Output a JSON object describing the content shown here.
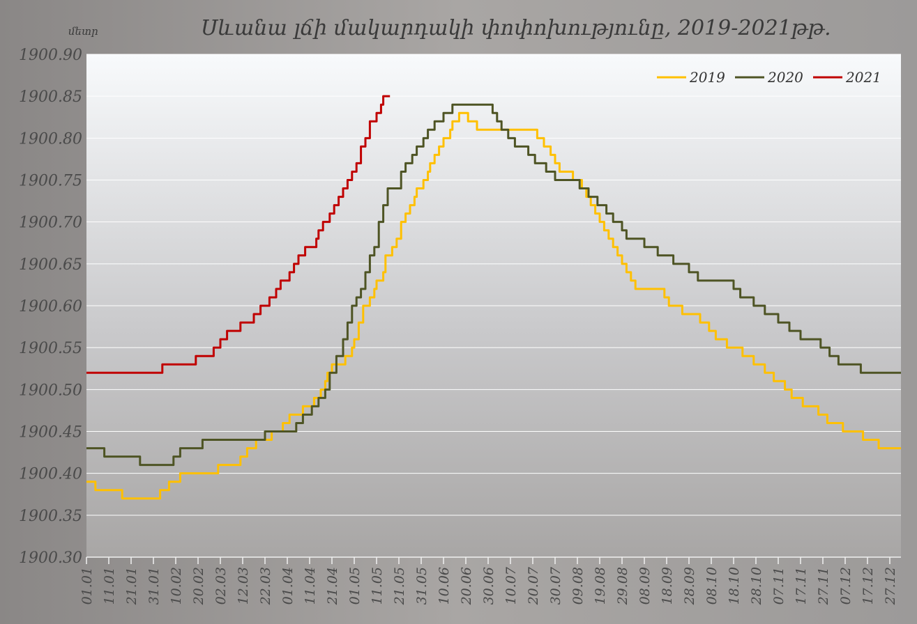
{
  "chart_data": {
    "type": "line",
    "title": "Սևանա լճի մակարդակի փոփոխությունը, 2019-2021թթ.",
    "ylabel": "մետր",
    "xlabel": "",
    "ylim": [
      1900.3,
      1900.9
    ],
    "yticks": [
      "1900.30",
      "1900.35",
      "1900.40",
      "1900.45",
      "1900.50",
      "1900.55",
      "1900.60",
      "1900.65",
      "1900.70",
      "1900.75",
      "1900.80",
      "1900.85",
      "1900.90"
    ],
    "xlim_days": [
      0,
      365
    ],
    "xticks": [
      "01.01",
      "11.01",
      "21.01",
      "31.01",
      "10.02",
      "20.02",
      "02.03",
      "12.03",
      "22.03",
      "01.04",
      "11.04",
      "21.04",
      "01.05",
      "11.05",
      "21.05",
      "31.05",
      "10.06",
      "20.06",
      "30.06",
      "10.07",
      "20.07",
      "30.07",
      "09.08",
      "19.08",
      "29.08",
      "08.09",
      "18.09",
      "28.09",
      "08.10",
      "18.10",
      "28.10",
      "07.11",
      "17.11",
      "27.11",
      "07.12",
      "17.12",
      "27.12"
    ],
    "grid": true,
    "legend_position": "top-right",
    "series": [
      {
        "name": "2019",
        "color": "#FFC000",
        "step_points": [
          [
            0,
            1900.39
          ],
          [
            4,
            1900.38
          ],
          [
            16,
            1900.37
          ],
          [
            33,
            1900.38
          ],
          [
            37,
            1900.39
          ],
          [
            42,
            1900.4
          ],
          [
            59,
            1900.41
          ],
          [
            69,
            1900.42
          ],
          [
            72,
            1900.43
          ],
          [
            76,
            1900.44
          ],
          [
            83,
            1900.45
          ],
          [
            88,
            1900.46
          ],
          [
            91,
            1900.47
          ],
          [
            97,
            1900.48
          ],
          [
            102,
            1900.49
          ],
          [
            105,
            1900.5
          ],
          [
            107,
            1900.51
          ],
          [
            108,
            1900.52
          ],
          [
            110,
            1900.53
          ],
          [
            116,
            1900.54
          ],
          [
            119,
            1900.55
          ],
          [
            120,
            1900.56
          ],
          [
            122,
            1900.58
          ],
          [
            124,
            1900.6
          ],
          [
            127,
            1900.61
          ],
          [
            129,
            1900.62
          ],
          [
            130,
            1900.63
          ],
          [
            133,
            1900.64
          ],
          [
            134,
            1900.66
          ],
          [
            137,
            1900.67
          ],
          [
            139,
            1900.68
          ],
          [
            141,
            1900.7
          ],
          [
            143,
            1900.71
          ],
          [
            145,
            1900.72
          ],
          [
            147,
            1900.73
          ],
          [
            148,
            1900.74
          ],
          [
            151,
            1900.75
          ],
          [
            153,
            1900.76
          ],
          [
            154,
            1900.77
          ],
          [
            156,
            1900.78
          ],
          [
            158,
            1900.79
          ],
          [
            160,
            1900.8
          ],
          [
            163,
            1900.81
          ],
          [
            164,
            1900.82
          ],
          [
            167,
            1900.83
          ],
          [
            171,
            1900.82
          ],
          [
            175,
            1900.81
          ],
          [
            202,
            1900.8
          ],
          [
            205,
            1900.79
          ],
          [
            208,
            1900.78
          ],
          [
            210,
            1900.77
          ],
          [
            212,
            1900.76
          ],
          [
            218,
            1900.75
          ],
          [
            222,
            1900.74
          ],
          [
            224,
            1900.73
          ],
          [
            226,
            1900.72
          ],
          [
            228,
            1900.71
          ],
          [
            230,
            1900.7
          ],
          [
            232,
            1900.69
          ],
          [
            234,
            1900.68
          ],
          [
            236,
            1900.67
          ],
          [
            238,
            1900.66
          ],
          [
            240,
            1900.65
          ],
          [
            242,
            1900.64
          ],
          [
            244,
            1900.63
          ],
          [
            246,
            1900.62
          ],
          [
            259,
            1900.61
          ],
          [
            261,
            1900.6
          ],
          [
            267,
            1900.59
          ],
          [
            275,
            1900.58
          ],
          [
            279,
            1900.57
          ],
          [
            282,
            1900.56
          ],
          [
            287,
            1900.55
          ],
          [
            294,
            1900.54
          ],
          [
            299,
            1900.53
          ],
          [
            304,
            1900.52
          ],
          [
            308,
            1900.51
          ],
          [
            313,
            1900.5
          ],
          [
            316,
            1900.49
          ],
          [
            321,
            1900.48
          ],
          [
            328,
            1900.47
          ],
          [
            332,
            1900.46
          ],
          [
            339,
            1900.45
          ],
          [
            348,
            1900.44
          ],
          [
            355,
            1900.43
          ],
          [
            365,
            1900.43
          ]
        ]
      },
      {
        "name": "2020",
        "color": "#4E5424",
        "step_points": [
          [
            0,
            1900.43
          ],
          [
            8,
            1900.42
          ],
          [
            24,
            1900.41
          ],
          [
            39,
            1900.42
          ],
          [
            42,
            1900.43
          ],
          [
            52,
            1900.44
          ],
          [
            80,
            1900.45
          ],
          [
            94,
            1900.46
          ],
          [
            97,
            1900.47
          ],
          [
            101,
            1900.48
          ],
          [
            104,
            1900.49
          ],
          [
            107,
            1900.5
          ],
          [
            109,
            1900.52
          ],
          [
            112,
            1900.54
          ],
          [
            115,
            1900.56
          ],
          [
            117,
            1900.58
          ],
          [
            119,
            1900.6
          ],
          [
            121,
            1900.61
          ],
          [
            123,
            1900.62
          ],
          [
            125,
            1900.64
          ],
          [
            127,
            1900.66
          ],
          [
            129,
            1900.67
          ],
          [
            131,
            1900.7
          ],
          [
            133,
            1900.72
          ],
          [
            135,
            1900.74
          ],
          [
            141,
            1900.76
          ],
          [
            143,
            1900.77
          ],
          [
            146,
            1900.78
          ],
          [
            148,
            1900.79
          ],
          [
            151,
            1900.8
          ],
          [
            153,
            1900.81
          ],
          [
            156,
            1900.82
          ],
          [
            160,
            1900.83
          ],
          [
            164,
            1900.84
          ],
          [
            182,
            1900.83
          ],
          [
            184,
            1900.82
          ],
          [
            186,
            1900.81
          ],
          [
            189,
            1900.8
          ],
          [
            192,
            1900.79
          ],
          [
            198,
            1900.78
          ],
          [
            201,
            1900.77
          ],
          [
            206,
            1900.76
          ],
          [
            210,
            1900.75
          ],
          [
            221,
            1900.74
          ],
          [
            225,
            1900.73
          ],
          [
            229,
            1900.72
          ],
          [
            233,
            1900.71
          ],
          [
            236,
            1900.7
          ],
          [
            240,
            1900.69
          ],
          [
            242,
            1900.68
          ],
          [
            250,
            1900.67
          ],
          [
            256,
            1900.66
          ],
          [
            263,
            1900.65
          ],
          [
            270,
            1900.64
          ],
          [
            274,
            1900.63
          ],
          [
            290,
            1900.62
          ],
          [
            293,
            1900.61
          ],
          [
            299,
            1900.6
          ],
          [
            304,
            1900.59
          ],
          [
            310,
            1900.58
          ],
          [
            315,
            1900.57
          ],
          [
            320,
            1900.56
          ],
          [
            329,
            1900.55
          ],
          [
            333,
            1900.54
          ],
          [
            337,
            1900.53
          ],
          [
            347,
            1900.52
          ],
          [
            365,
            1900.52
          ]
        ]
      },
      {
        "name": "2021",
        "color": "#C00000",
        "step_points": [
          [
            0,
            1900.52
          ],
          [
            34,
            1900.53
          ],
          [
            49,
            1900.54
          ],
          [
            57,
            1900.55
          ],
          [
            60,
            1900.56
          ],
          [
            63,
            1900.57
          ],
          [
            69,
            1900.58
          ],
          [
            75,
            1900.59
          ],
          [
            78,
            1900.6
          ],
          [
            82,
            1900.61
          ],
          [
            85,
            1900.62
          ],
          [
            87,
            1900.63
          ],
          [
            91,
            1900.64
          ],
          [
            93,
            1900.65
          ],
          [
            95,
            1900.66
          ],
          [
            98,
            1900.67
          ],
          [
            103,
            1900.68
          ],
          [
            104,
            1900.69
          ],
          [
            106,
            1900.7
          ],
          [
            109,
            1900.71
          ],
          [
            111,
            1900.72
          ],
          [
            113,
            1900.73
          ],
          [
            115,
            1900.74
          ],
          [
            117,
            1900.75
          ],
          [
            119,
            1900.76
          ],
          [
            121,
            1900.77
          ],
          [
            123,
            1900.79
          ],
          [
            125,
            1900.8
          ],
          [
            127,
            1900.82
          ],
          [
            130,
            1900.83
          ],
          [
            132,
            1900.84
          ],
          [
            133,
            1900.85
          ],
          [
            136,
            1900.85
          ]
        ]
      }
    ]
  }
}
